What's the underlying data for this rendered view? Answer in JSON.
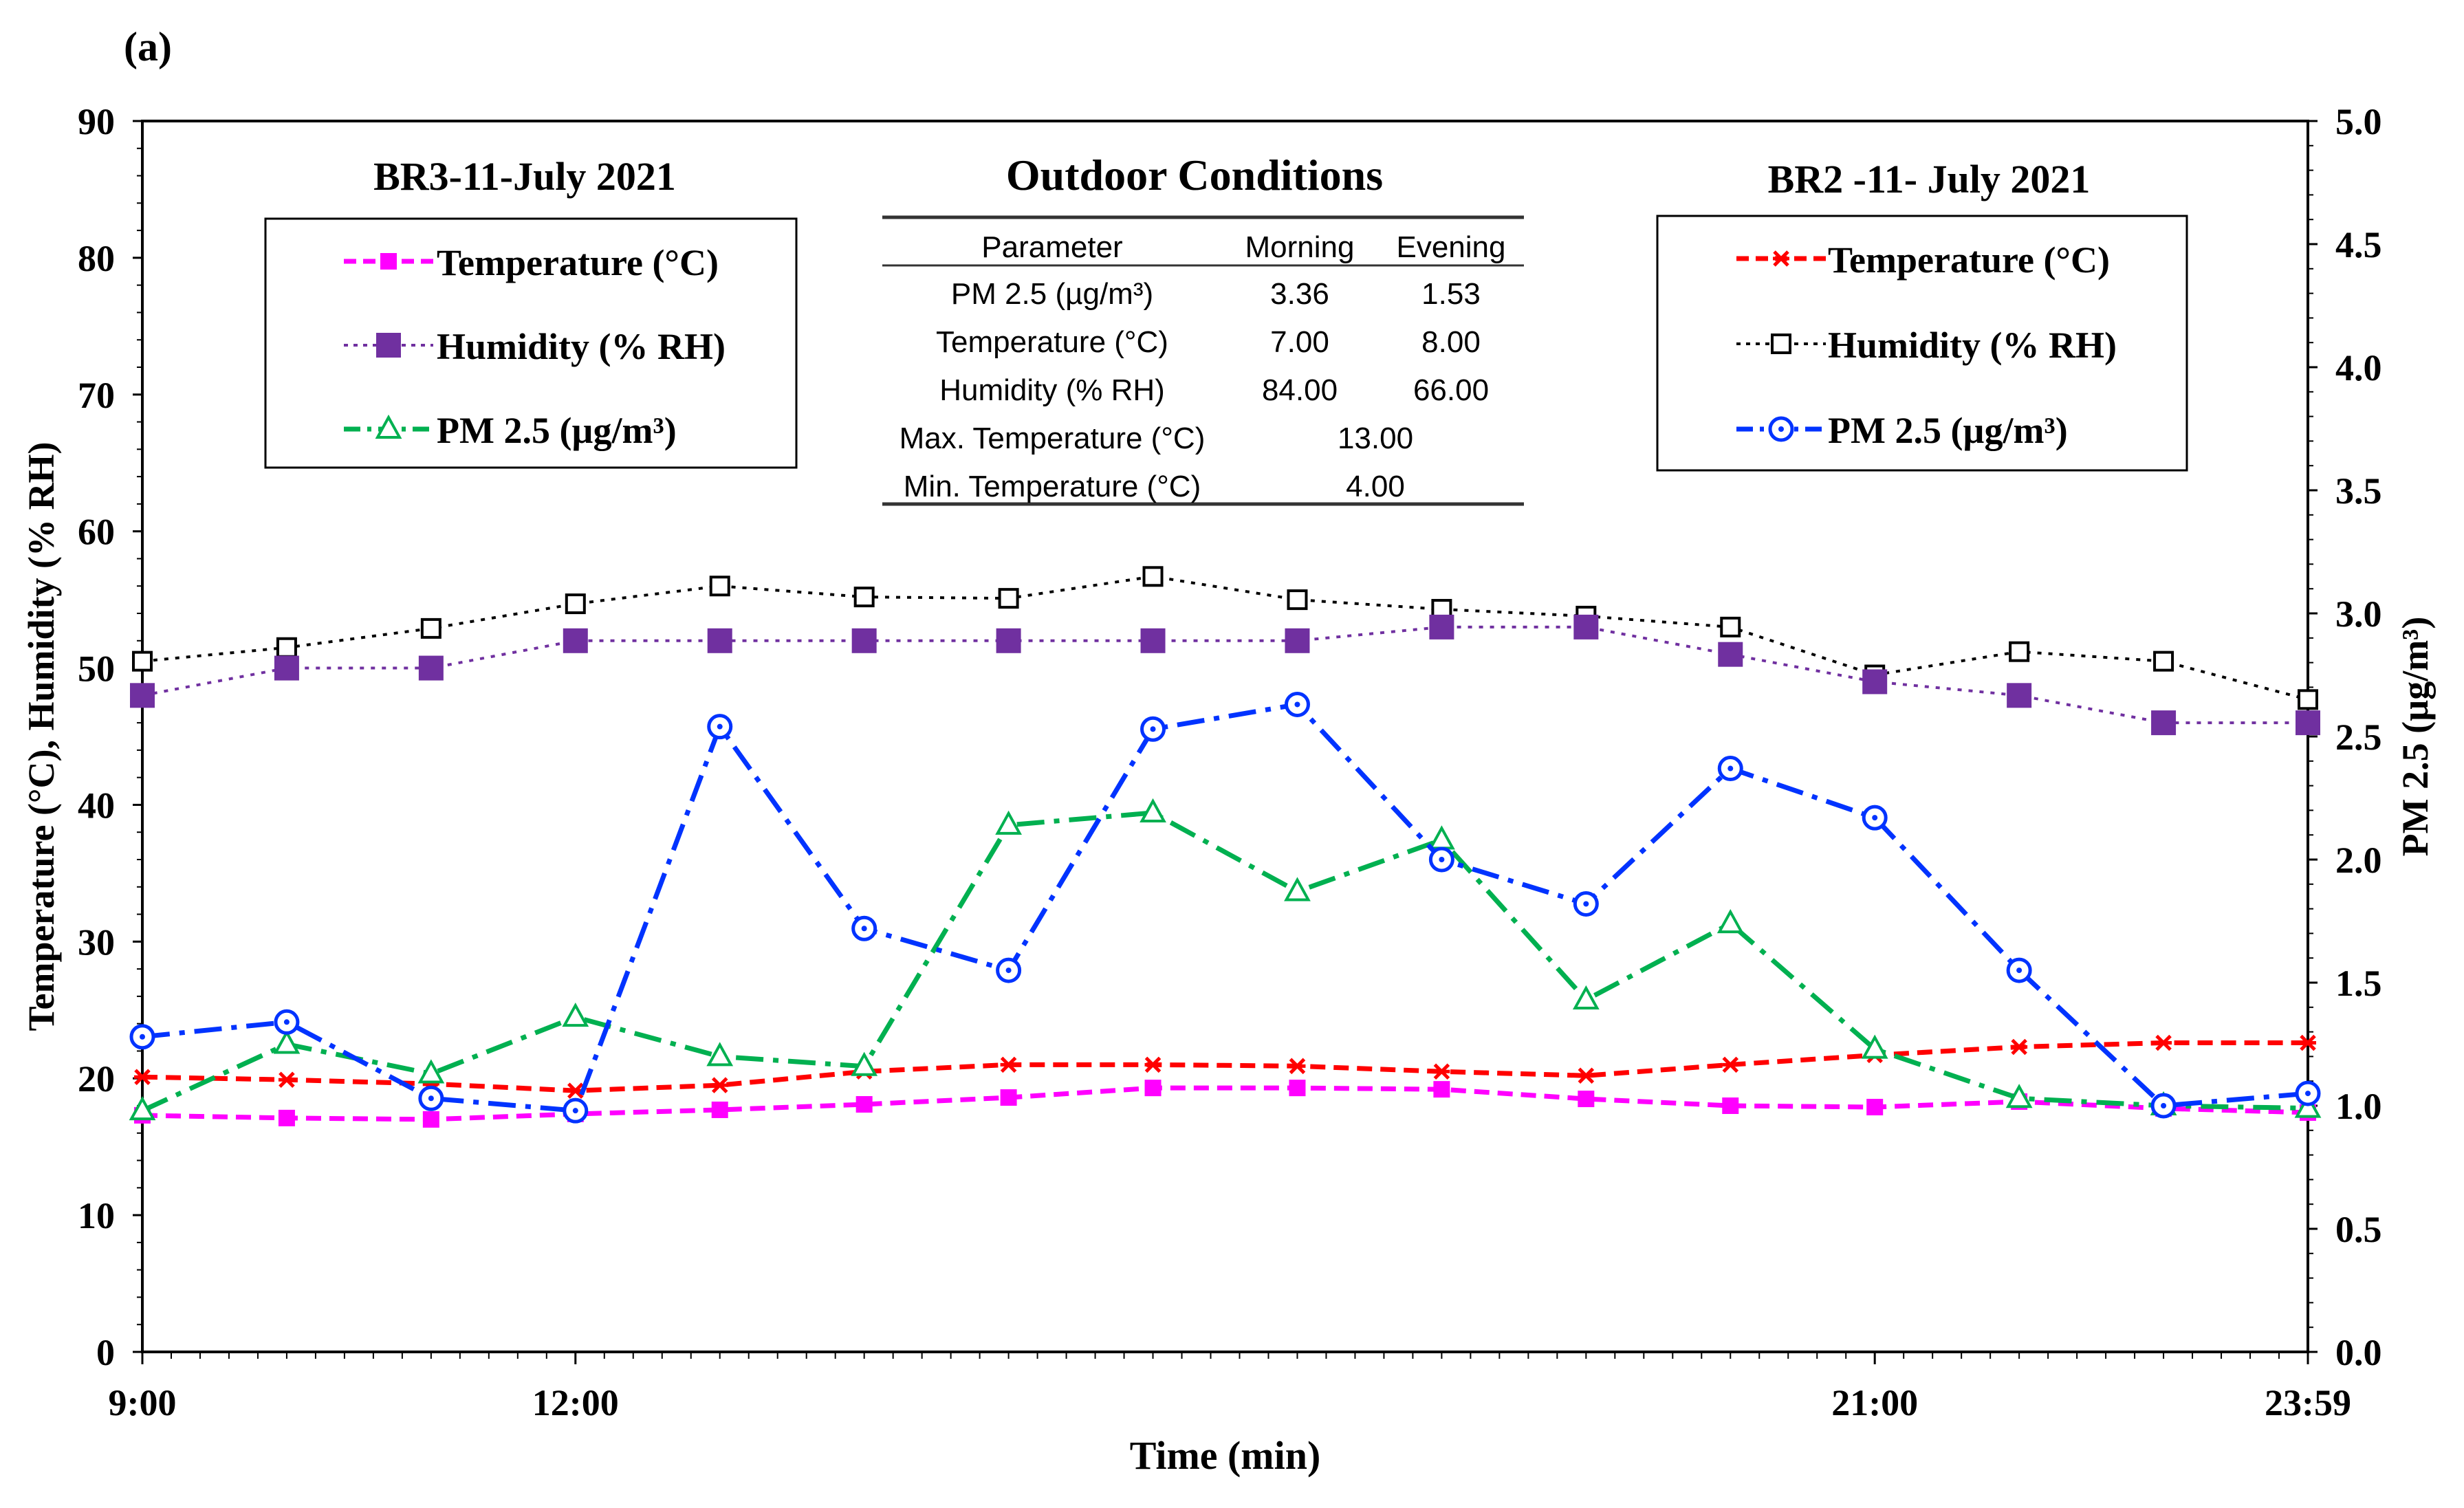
{
  "panel_label": "(a)",
  "chart_data": {
    "type": "line",
    "xlabel": "Time (min)",
    "ylabel_left": "Temperature (°C), Humidity (% RH)",
    "ylabel_right": "PM 2.5 (µg/m³)",
    "ylim_left": [
      0,
      90
    ],
    "ylim_right": [
      0,
      5
    ],
    "yticks_left": [
      "0",
      "10",
      "20",
      "30",
      "40",
      "50",
      "60",
      "70",
      "80",
      "90"
    ],
    "yticks_right": [
      "0.0",
      "0.5",
      "1.0",
      "1.5",
      "2.0",
      "2.5",
      "3.0",
      "3.5",
      "4.0",
      "4.5",
      "5.0"
    ],
    "x_tick_labels": [
      "9:00",
      "12:00",
      "21:00",
      "23:59"
    ],
    "x_points": 16,
    "series": [
      {
        "id": "br2_hum",
        "name": "Humidity (% RH)",
        "group": "BR2 -11- July 2021",
        "axis": "left",
        "color": "#000000",
        "marker": "square-open",
        "dash": "dot",
        "values": [
          50.5,
          51.5,
          52.9,
          54.7,
          56.0,
          55.2,
          55.1,
          56.7,
          55.0,
          54.3,
          53.8,
          53.0,
          49.5,
          51.2,
          50.5,
          47.7
        ]
      },
      {
        "id": "br3_hum",
        "name": "Humidity (% RH)",
        "group": "BR3-11-July 2021",
        "axis": "left",
        "color": "#7030a0",
        "marker": "square-filled",
        "dash": "dot",
        "values": [
          48.0,
          50.0,
          50.0,
          52.0,
          52.0,
          52.0,
          52.0,
          52.0,
          52.0,
          53.0,
          53.0,
          51.0,
          49.0,
          48.0,
          46.0,
          46.0
        ]
      },
      {
        "id": "br2_temp",
        "name": "Temperature (°C)",
        "group": "BR2 -11- July 2021",
        "axis": "left",
        "color": "#ff0000",
        "marker": "star",
        "dash": "dash",
        "values": [
          20.1,
          19.9,
          19.6,
          19.1,
          19.5,
          20.5,
          21.0,
          21.0,
          20.9,
          20.5,
          20.2,
          21.0,
          21.7,
          22.3,
          22.6,
          22.6
        ]
      },
      {
        "id": "br3_temp",
        "name": "Temperature (°C)",
        "group": "BR3-11-July 2021",
        "axis": "left",
        "color": "#ff00ff",
        "marker": "square-filled",
        "dash": "dash",
        "values": [
          17.3,
          17.1,
          17.0,
          17.4,
          17.7,
          18.1,
          18.6,
          19.3,
          19.3,
          19.2,
          18.5,
          18.0,
          17.9,
          18.3,
          17.8,
          17.5
        ]
      },
      {
        "id": "br3_pm",
        "name": "PM 2.5 (µg/m³)",
        "group": "BR3-11-July 2021",
        "axis": "right",
        "color": "#00b050",
        "marker": "triangle-open",
        "dash": "dashdot",
        "values": [
          0.98,
          1.25,
          1.13,
          1.36,
          1.2,
          1.16,
          2.14,
          2.19,
          1.87,
          2.08,
          1.43,
          1.74,
          1.23,
          1.03,
          1.0,
          0.99
        ]
      },
      {
        "id": "br2_pm",
        "name": "PM 2.5 (µg/m³)",
        "group": "BR2 -11- July 2021",
        "axis": "right",
        "color": "#0033ff",
        "marker": "circle-dot",
        "dash": "dashdot",
        "values": [
          1.28,
          1.34,
          1.03,
          0.98,
          2.54,
          1.72,
          1.55,
          2.53,
          2.63,
          2.0,
          1.82,
          2.37,
          2.17,
          1.55,
          1.0,
          1.05
        ]
      }
    ],
    "legends": {
      "left": {
        "title": "BR3-11-July 2021",
        "items": [
          "Temperature (°C)",
          "Humidity (% RH)",
          "PM 2.5 (µg/m³)"
        ]
      },
      "right": {
        "title": "BR2 -11- July 2021",
        "items": [
          "Temperature (°C)",
          "Humidity (% RH)",
          "PM 2.5 (µg/m³)"
        ]
      }
    },
    "outdoor_table": {
      "title": "Outdoor Conditions",
      "header": [
        "Parameter",
        "Morning",
        "Evening"
      ],
      "rows": [
        [
          "PM 2.5 (µg/m³)",
          "3.36",
          "1.53"
        ],
        [
          "Temperature (°C)",
          "7.00",
          "8.00"
        ],
        [
          "Humidity (% RH)",
          "84.00",
          "66.00"
        ]
      ],
      "span_rows": [
        [
          "Max. Temperature (°C)",
          "13.00"
        ],
        [
          "Min. Temperature (°C)",
          "4.00"
        ]
      ]
    }
  }
}
